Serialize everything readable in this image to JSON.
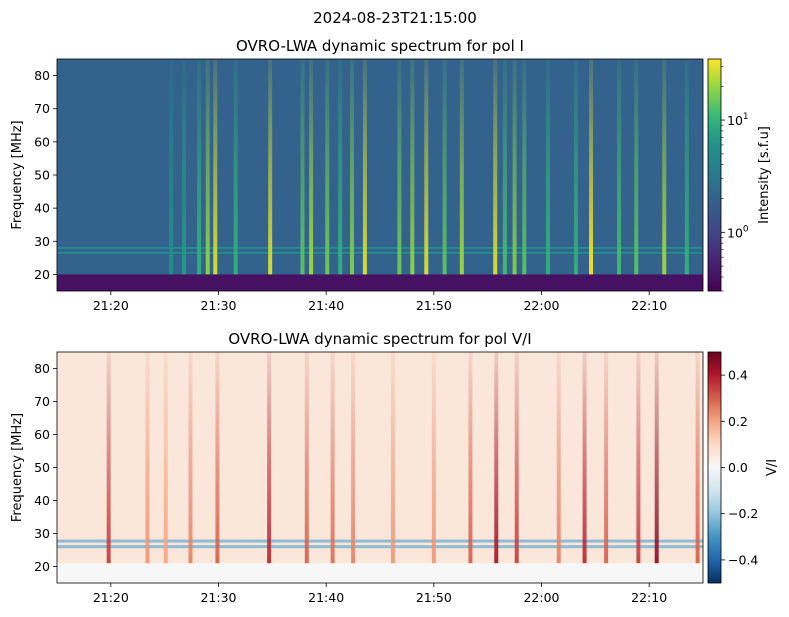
{
  "suptitle": "2024-08-23T21:15:00",
  "chart_data": [
    {
      "type": "heatmap",
      "title": "OVRO-LWA dynamic spectrum for pol I",
      "xlabel": "",
      "ylabel": "Frequency [MHz]",
      "x_tick_labels": [
        "21:20",
        "21:30",
        "21:40",
        "21:50",
        "22:00",
        "22:10"
      ],
      "x_ticks_min": [
        20,
        30,
        40,
        50,
        60,
        70
      ],
      "xlim_min": [
        15,
        75
      ],
      "y_ticks": [
        20,
        30,
        40,
        50,
        60,
        70,
        80
      ],
      "ylim": [
        15,
        85
      ],
      "colorscale": "viridis",
      "colorbar": {
        "label": "Intensity [s.f.u]",
        "scale": "log",
        "range": [
          0.3,
          35
        ],
        "tick_labels": [
          "10^0",
          "10^1"
        ],
        "tick_values": [
          1,
          10
        ]
      },
      "background_intensity": 2,
      "low_freq_band": {
        "range_mhz": [
          15,
          20
        ],
        "intensity": 0.4
      },
      "horizontal_lines_mhz": [
        26.5,
        28
      ],
      "bursts": [
        {
          "t_min": 25.6,
          "intensity": 6
        },
        {
          "t_min": 26.8,
          "intensity": 7
        },
        {
          "t_min": 28.2,
          "intensity": 10
        },
        {
          "t_min": 29.0,
          "intensity": 20
        },
        {
          "t_min": 29.7,
          "intensity": 30
        },
        {
          "t_min": 31.6,
          "intensity": 10
        },
        {
          "t_min": 34.8,
          "intensity": 30
        },
        {
          "t_min": 37.8,
          "intensity": 14
        },
        {
          "t_min": 38.6,
          "intensity": 22
        },
        {
          "t_min": 40.1,
          "intensity": 16
        },
        {
          "t_min": 41.3,
          "intensity": 10
        },
        {
          "t_min": 42.4,
          "intensity": 18
        },
        {
          "t_min": 43.6,
          "intensity": 30
        },
        {
          "t_min": 46.8,
          "intensity": 16
        },
        {
          "t_min": 48.0,
          "intensity": 20
        },
        {
          "t_min": 49.3,
          "intensity": 30
        },
        {
          "t_min": 51.0,
          "intensity": 14
        },
        {
          "t_min": 52.6,
          "intensity": 22
        },
        {
          "t_min": 55.7,
          "intensity": 30
        },
        {
          "t_min": 56.6,
          "intensity": 12
        },
        {
          "t_min": 57.5,
          "intensity": 18
        },
        {
          "t_min": 58.4,
          "intensity": 14
        },
        {
          "t_min": 60.6,
          "intensity": 10
        },
        {
          "t_min": 63.2,
          "intensity": 10
        },
        {
          "t_min": 64.6,
          "intensity": 35
        },
        {
          "t_min": 67.2,
          "intensity": 12
        },
        {
          "t_min": 68.8,
          "intensity": 14
        },
        {
          "t_min": 71.4,
          "intensity": 22
        },
        {
          "t_min": 73.5,
          "intensity": 10
        }
      ]
    },
    {
      "type": "heatmap",
      "title": "OVRO-LWA dynamic spectrum for pol V/I",
      "xlabel": "",
      "ylabel": "Frequency [MHz]",
      "x_tick_labels": [
        "21:20",
        "21:30",
        "21:40",
        "21:50",
        "22:00",
        "22:10"
      ],
      "x_ticks_min": [
        20,
        30,
        40,
        50,
        60,
        70
      ],
      "xlim_min": [
        15,
        75
      ],
      "y_ticks": [
        20,
        30,
        40,
        50,
        60,
        70,
        80
      ],
      "ylim": [
        15,
        85
      ],
      "colorscale": "RdBu_r",
      "colorbar": {
        "label": "V/I",
        "range": [
          -0.5,
          0.5
        ],
        "tick_values": [
          -0.4,
          -0.2,
          0.0,
          0.2,
          0.4
        ],
        "tick_labels": [
          "−0.4",
          "−0.2",
          "0.0",
          "0.2",
          "0.4"
        ]
      },
      "background_value": 0.06,
      "low_freq_band": {
        "range_mhz": [
          15,
          21
        ],
        "value": 0.0
      },
      "negative_bands_mhz": [
        26,
        27.7
      ],
      "bursts": [
        {
          "t_min": 19.8,
          "value": 0.35
        },
        {
          "t_min": 23.4,
          "value": 0.22
        },
        {
          "t_min": 25.1,
          "value": 0.2
        },
        {
          "t_min": 27.4,
          "value": 0.25
        },
        {
          "t_min": 29.9,
          "value": 0.3
        },
        {
          "t_min": 34.7,
          "value": 0.38
        },
        {
          "t_min": 38.2,
          "value": 0.3
        },
        {
          "t_min": 40.6,
          "value": 0.28
        },
        {
          "t_min": 42.5,
          "value": 0.25
        },
        {
          "t_min": 46.2,
          "value": 0.22
        },
        {
          "t_min": 50.0,
          "value": 0.22
        },
        {
          "t_min": 53.4,
          "value": 0.3
        },
        {
          "t_min": 55.8,
          "value": 0.42
        },
        {
          "t_min": 57.7,
          "value": 0.35
        },
        {
          "t_min": 61.6,
          "value": 0.25
        },
        {
          "t_min": 64.0,
          "value": 0.38
        },
        {
          "t_min": 66.0,
          "value": 0.3
        },
        {
          "t_min": 69.0,
          "value": 0.35
        },
        {
          "t_min": 70.7,
          "value": 0.45
        },
        {
          "t_min": 74.5,
          "value": 0.3
        }
      ]
    }
  ]
}
